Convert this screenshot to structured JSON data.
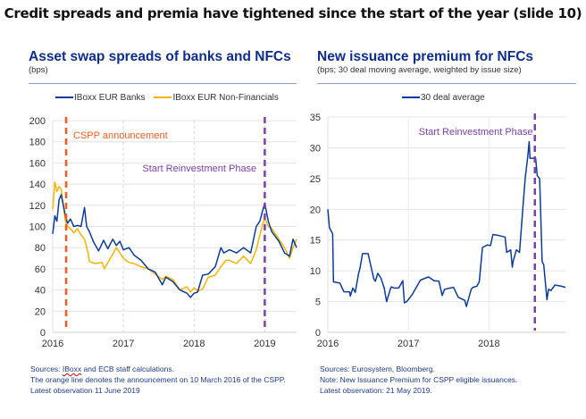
{
  "slide_title": "Credit spreads and premia have tightened since the start of the year (slide 10)",
  "colors": {
    "banks": "#0b3c9c",
    "nfc": "#f5b400",
    "cspp": "#ff5a1f",
    "reinvest": "#7b3fb0",
    "title": "#0d2d8f",
    "grid": "#e3e3e3"
  },
  "left_notes": {
    "line1_prefix": "Sources: ",
    "line1_link": "IBoxx",
    "line1_suffix": " and ECB staff calculations.",
    "line2": "The orange line denotes the announcement on 10 March 2016 of the CSPP.",
    "line3": "Latest observation 11 June 2019"
  },
  "right_notes": {
    "line1": "Sources: Eurosystem, Bloomberg.",
    "line2": "Note: New Issuance Premium for CSPP eligible issuances.",
    "line3": "Latest observation: 21 May 2019."
  },
  "chart_data": [
    {
      "type": "line",
      "title": "Asset swap spreads of banks and NFCs",
      "subtitle": "(bps)",
      "xlabel": "",
      "ylabel": "",
      "xlim": [
        2016.0,
        2019.45
      ],
      "ylim": [
        0,
        200
      ],
      "yticks": [
        0,
        20,
        40,
        60,
        80,
        100,
        120,
        140,
        160,
        180,
        200
      ],
      "xticks": [
        2016,
        2017,
        2018,
        2019
      ],
      "xtick_labels": [
        "2016",
        "2017",
        "2018",
        "2019"
      ],
      "grid": true,
      "legend_position": "top",
      "series": [
        {
          "name": "IBoxx EUR Banks",
          "x": [
            2016.0,
            2016.03,
            2016.06,
            2016.09,
            2016.12,
            2016.15,
            2016.18,
            2016.21,
            2016.25,
            2016.3,
            2016.35,
            2016.4,
            2016.45,
            2016.48,
            2016.52,
            2016.58,
            2016.65,
            2016.72,
            2016.78,
            2016.85,
            2016.9,
            2016.95,
            2017.0,
            2017.08,
            2017.15,
            2017.25,
            2017.35,
            2017.45,
            2017.55,
            2017.6,
            2017.7,
            2017.8,
            2017.9,
            2017.95,
            2018.0,
            2018.05,
            2018.12,
            2018.2,
            2018.3,
            2018.38,
            2018.42,
            2018.5,
            2018.6,
            2018.7,
            2018.8,
            2018.88,
            2018.93,
            2018.97,
            2019.0,
            2019.05,
            2019.1,
            2019.2,
            2019.28,
            2019.35,
            2019.4,
            2019.45
          ],
          "y": [
            93,
            110,
            105,
            125,
            130,
            120,
            110,
            103,
            107,
            100,
            101,
            100,
            118,
            100,
            95,
            85,
            77,
            87,
            79,
            88,
            82,
            86,
            78,
            80,
            73,
            68,
            60,
            57,
            45,
            52,
            48,
            40,
            37,
            33,
            37,
            38,
            54,
            55,
            62,
            80,
            75,
            78,
            75,
            80,
            75,
            100,
            105,
            115,
            122,
            105,
            95,
            86,
            75,
            72,
            88,
            80
          ]
        },
        {
          "name": "IBoxx EUR Non-Financials",
          "x": [
            2016.0,
            2016.03,
            2016.06,
            2016.09,
            2016.12,
            2016.15,
            2016.18,
            2016.21,
            2016.25,
            2016.3,
            2016.35,
            2016.4,
            2016.45,
            2016.5,
            2016.52,
            2016.6,
            2016.7,
            2016.73,
            2016.8,
            2016.9,
            2016.95,
            2017.0,
            2017.08,
            2017.15,
            2017.25,
            2017.35,
            2017.45,
            2017.55,
            2017.6,
            2017.7,
            2017.8,
            2017.9,
            2017.95,
            2018.0,
            2018.05,
            2018.12,
            2018.2,
            2018.3,
            2018.38,
            2018.45,
            2018.5,
            2018.6,
            2018.7,
            2018.8,
            2018.88,
            2018.93,
            2018.97,
            2019.0,
            2019.05,
            2019.1,
            2019.2,
            2019.28,
            2019.35,
            2019.4,
            2019.45
          ],
          "y": [
            116,
            142,
            133,
            138,
            135,
            120,
            105,
            100,
            98,
            94,
            98,
            92,
            88,
            75,
            67,
            65,
            66,
            60,
            68,
            80,
            75,
            70,
            66,
            65,
            62,
            60,
            55,
            50,
            53,
            50,
            40,
            43,
            38,
            42,
            39,
            41,
            52,
            54,
            62,
            68,
            68,
            65,
            72,
            65,
            78,
            92,
            102,
            108,
            100,
            98,
            88,
            80,
            70,
            80,
            88
          ]
        }
      ],
      "annotations": [
        {
          "type": "vline",
          "x": 2016.19,
          "label": "CSPP announcement",
          "color": "#ff5a1f"
        },
        {
          "type": "vline",
          "x": 2019.0,
          "label": "Start Reinvestment Phase",
          "color": "#7b3fb0"
        }
      ]
    },
    {
      "type": "line",
      "title": "New issuance premium for NFCs",
      "subtitle": "(bps; 30 deal moving average, weighted by issue size)",
      "xlabel": "",
      "ylabel": "",
      "xlim": [
        2016.0,
        2018.95
      ],
      "ylim": [
        0,
        35
      ],
      "yticks": [
        0,
        5,
        10,
        15,
        20,
        25,
        30,
        35
      ],
      "xticks": [
        2016,
        2017,
        2018
      ],
      "xtick_labels": [
        "2016",
        "2017",
        "2018"
      ],
      "grid": true,
      "legend_position": "top",
      "series": [
        {
          "name": "30 deal average",
          "x": [
            2016.0,
            2016.02,
            2016.06,
            2016.07,
            2016.15,
            2016.2,
            2016.27,
            2016.28,
            2016.31,
            2016.34,
            2016.38,
            2016.4,
            2016.43,
            2016.47,
            2016.5,
            2016.57,
            2016.59,
            2016.62,
            2016.66,
            2016.7,
            2016.73,
            2016.78,
            2016.79,
            2016.82,
            2016.88,
            2016.93,
            2016.95,
            2016.98,
            2017.05,
            2017.15,
            2017.25,
            2017.32,
            2017.38,
            2017.42,
            2017.45,
            2017.52,
            2017.56,
            2017.62,
            2017.7,
            2017.72,
            2017.78,
            2017.8,
            2017.85,
            2017.88,
            2017.92,
            2017.98,
            2018.02,
            2018.05,
            2018.1,
            2018.2,
            2018.22,
            2018.27,
            2018.29,
            2018.3,
            2018.34,
            2018.38,
            2018.42,
            2018.45,
            2018.48,
            2018.5,
            2018.51,
            2018.58,
            2018.6,
            2018.63,
            2018.66,
            2018.68,
            2018.72,
            2018.74,
            2018.77,
            2018.82,
            2018.9,
            2018.95
          ],
          "y": [
            20,
            17,
            16,
            8.2,
            8,
            6.6,
            6.6,
            5.9,
            7.2,
            6.5,
            9.5,
            10.5,
            12.8,
            12.8,
            12.8,
            8.7,
            8.3,
            9.6,
            8.8,
            7.2,
            5,
            7.2,
            7.4,
            7.2,
            7.2,
            8.4,
            4.8,
            5,
            6.2,
            8.5,
            9,
            8.4,
            8.3,
            6,
            7,
            7.2,
            7.3,
            5.7,
            5.2,
            4.2,
            7,
            7.3,
            7.5,
            8.2,
            13.8,
            14.2,
            14.1,
            15.9,
            15.8,
            15.5,
            13,
            13.4,
            10.6,
            11.5,
            13.4,
            13,
            20,
            25,
            28.3,
            31,
            28.3,
            28.3,
            25.5,
            25,
            11.5,
            11,
            5.3,
            7,
            6.8,
            7.7,
            7.5,
            7.3
          ]
        }
      ],
      "annotations": [
        {
          "type": "vline",
          "x": 2018.57,
          "label": "Start Reinvestment Phase",
          "color": "#7b3fb0"
        }
      ]
    }
  ]
}
